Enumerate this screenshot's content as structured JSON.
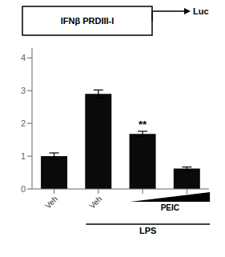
{
  "chart_data": {
    "type": "bar",
    "categories": [
      "Veh",
      "Veh",
      null,
      null
    ],
    "values": [
      1.0,
      2.9,
      1.68,
      0.62
    ],
    "errors": [
      0.1,
      0.12,
      0.08,
      0.05
    ],
    "color": "#0a0a0a",
    "ylim": [
      0,
      4.3
    ],
    "yticks": [
      0,
      1,
      2,
      3,
      4
    ],
    "grid": false,
    "annotations": [
      "**",
      "PEIC",
      "LPS",
      "IFNβ PRDIII-I",
      "Luc"
    ]
  }
}
